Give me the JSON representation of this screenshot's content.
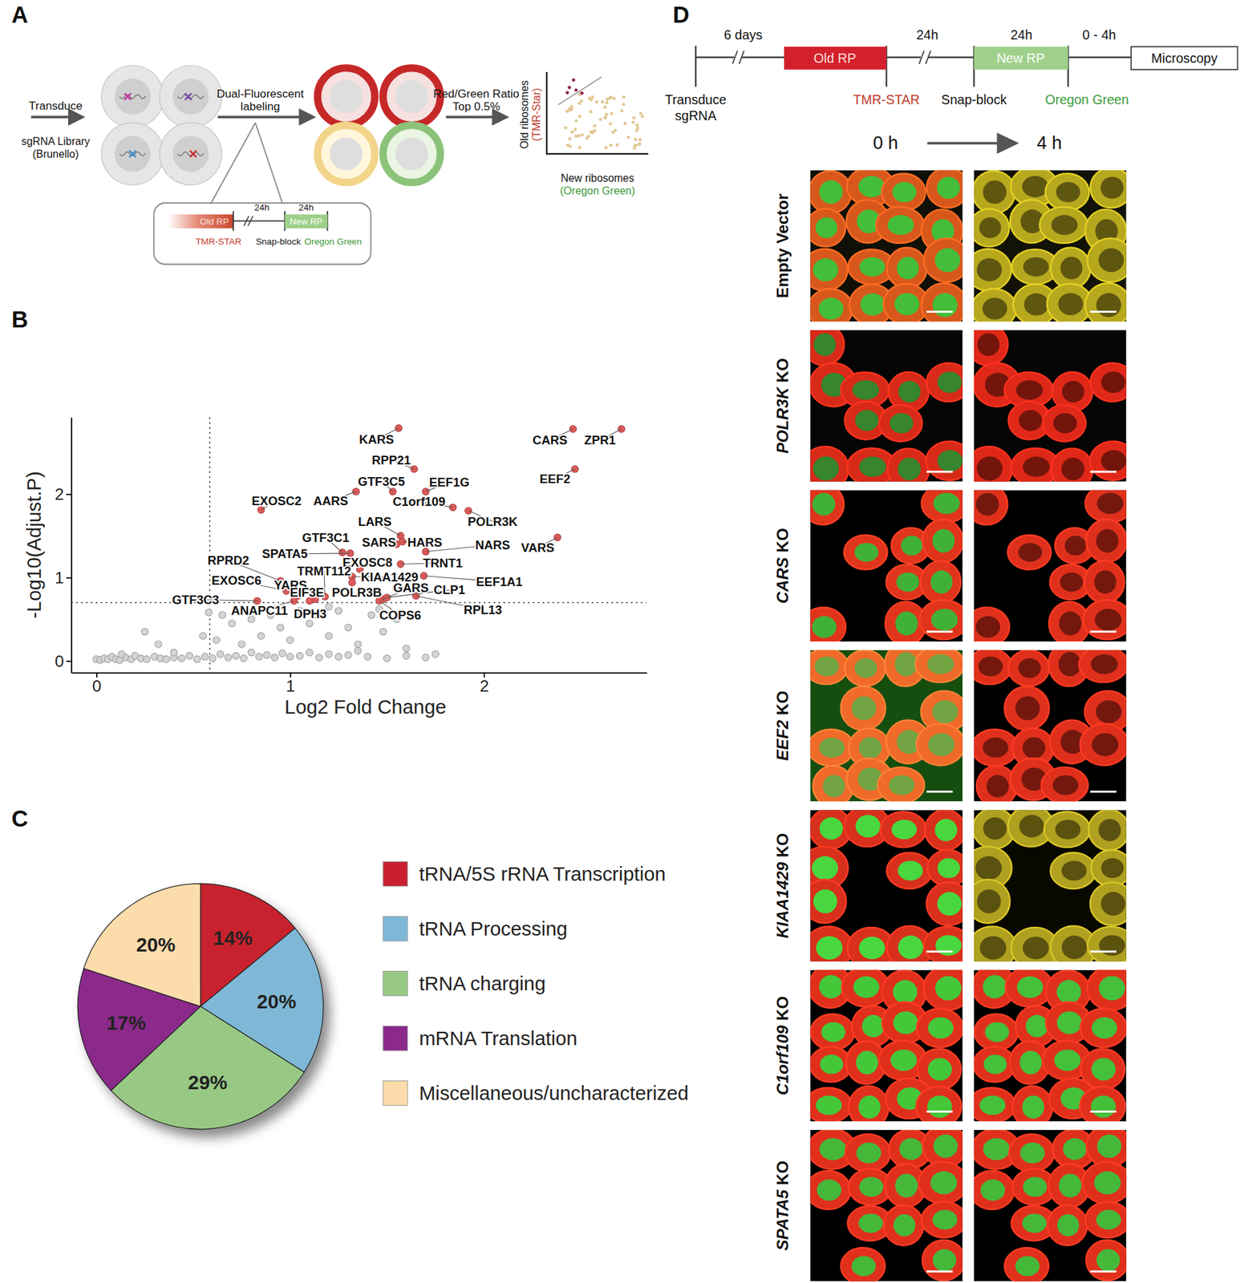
{
  "panels": {
    "A": {
      "label": "A",
      "step1": "Transduce",
      "library": [
        "sgRNA Library",
        "(Brunello)"
      ],
      "step2": [
        "Dual-Fluorescent",
        "labeling"
      ],
      "timeline": {
        "old": "Old RP",
        "gap": "24h",
        "new": "New RP",
        "gap2": "24h",
        "old_dye": "TMR-STAR",
        "block": "Snap-block",
        "new_dye": "Oregon Green"
      },
      "step3": [
        "Red/Green Ratio",
        "Top 0.5%"
      ],
      "y_label": [
        "Old ribosomes",
        "(TMR-Star)"
      ],
      "x_label": [
        "New ribosomes",
        "(Oregon Green)"
      ]
    },
    "B": {
      "label": "B"
    },
    "C": {
      "label": "C"
    },
    "D": {
      "label": "D",
      "durations": [
        "6 days",
        "24h",
        "24h",
        "0 - 4h"
      ],
      "old": "Old RP",
      "new": "New RP",
      "end": "Microscopy",
      "transduce": [
        "Transduce",
        "sgRNA"
      ],
      "old_dye": "TMR-STAR",
      "block": "Snap-block",
      "new_dye": "Oregon Green",
      "times": [
        "0 h",
        "4 h"
      ],
      "rows": [
        {
          "label": "Empty Vector",
          "images": [
            {
              "background": "#101008",
              "cytoplasm": "#d8581c",
              "nucleus": "#3cc43c"
            },
            {
              "background": "#121208",
              "cytoplasm": "#b8a81e",
              "nucleus": null
            }
          ]
        },
        {
          "gene": "POLR3K",
          "label": "KO",
          "images": [
            {
              "background": "#050505",
              "cytoplasm": "#d82a18",
              "nucleus": "#2e8a2e"
            },
            {
              "background": "#050505",
              "cytoplasm": "#e02818",
              "nucleus": null
            }
          ]
        },
        {
          "gene": "CARS",
          "label": "KO",
          "images": [
            {
              "background": "#000000",
              "cytoplasm": "#e0341c",
              "nucleus": "#38b838"
            },
            {
              "background": "#000000",
              "cytoplasm": "#e0301c",
              "nucleus": null
            }
          ]
        },
        {
          "gene": "EEF2",
          "label": "KO",
          "images": [
            {
              "background": "#164e10",
              "cytoplasm": "#f06a2a",
              "nucleus": "#6aa844"
            },
            {
              "background": "#000000",
              "cytoplasm": "#e0301c",
              "nucleus": null
            }
          ]
        },
        {
          "gene": "KIAA1429",
          "label": "KO",
          "images": [
            {
              "background": "#000000",
              "cytoplasm": "#d8301c",
              "nucleus": "#40e040"
            },
            {
              "background": "#080800",
              "cytoplasm": "#b0a020",
              "nucleus": null
            }
          ]
        },
        {
          "gene": "C1orf109",
          "label": "KO",
          "images": [
            {
              "background": "#000000",
              "cytoplasm": "#e0301c",
              "nucleus": "#3cd03c"
            },
            {
              "background": "#000000",
              "cytoplasm": "#e0301c",
              "nucleus": "#3cc83c"
            }
          ]
        },
        {
          "gene": "SPATA5",
          "label": "KO",
          "images": [
            {
              "background": "#000000",
              "cytoplasm": "#e0301c",
              "nucleus": "#3cc03c"
            },
            {
              "background": "#000000",
              "cytoplasm": "#e0301c",
              "nucleus": "#3cc03c"
            }
          ]
        }
      ]
    }
  },
  "chart_data": [
    {
      "type": "scatter",
      "x_label": "Log2 Fold Change",
      "y_label": "-Log10(Adjust.P)",
      "xlim": [
        -0.13,
        2.84
      ],
      "ylim": [
        -0.14,
        2.92
      ],
      "xticks": [
        0,
        1,
        2
      ],
      "yticks": [
        0,
        1,
        2
      ],
      "reference_lines": [
        {
          "axis": "x",
          "value": 0.585
        },
        {
          "axis": "y",
          "value": 0.699
        }
      ],
      "series": [
        {
          "color": "#d4d4d4",
          "x": [
            0.0,
            0.02,
            0.04,
            0.06,
            0.08,
            0.1,
            0.12,
            0.15,
            0.18,
            0.2,
            0.23,
            0.26,
            0.3,
            0.33,
            0.36,
            0.4,
            0.44,
            0.48,
            0.52,
            0.56,
            0.6,
            0.64,
            0.68,
            0.72,
            0.76,
            0.8,
            0.84,
            0.88,
            0.92,
            0.96,
            1.0,
            1.05,
            1.1,
            1.15,
            1.2,
            1.25,
            1.3,
            1.35,
            1.4,
            1.5,
            1.6,
            1.7,
            1.75,
            0.13,
            0.25,
            0.32,
            0.55,
            0.62,
            0.7,
            0.75,
            0.8,
            0.85,
            0.9,
            0.95,
            1.0,
            1.05,
            1.1,
            1.13,
            1.2,
            1.25,
            1.3,
            1.35,
            1.42,
            1.48,
            1.55,
            1.6,
            1.46,
            1.2,
            0.65,
            0.4,
            0.58
          ],
          "values": [
            0.02,
            0.01,
            0.03,
            0.02,
            0.05,
            0.02,
            0.01,
            0.04,
            0.02,
            0.06,
            0.03,
            0.02,
            0.05,
            0.03,
            0.02,
            0.04,
            0.03,
            0.06,
            0.02,
            0.05,
            0.03,
            0.08,
            0.04,
            0.06,
            0.03,
            0.1,
            0.05,
            0.07,
            0.04,
            0.09,
            0.05,
            0.06,
            0.1,
            0.04,
            0.08,
            0.05,
            0.07,
            0.12,
            0.05,
            0.03,
            0.06,
            0.04,
            0.08,
            0.08,
            0.35,
            0.2,
            0.3,
            0.25,
            0.45,
            0.2,
            0.5,
            0.3,
            0.55,
            0.4,
            0.25,
            0.6,
            0.45,
            0.55,
            0.3,
            0.6,
            0.4,
            0.2,
            0.55,
            0.35,
            0.5,
            0.15,
            0.62,
            0.65,
            0.55,
            0.1,
            0.58
          ]
        },
        {
          "color": "#e05a5a",
          "labels": [
            "KARS",
            "RPP21",
            "GTF3C5",
            "EEF1G",
            "AARS",
            "EXOSC2",
            "C1orf109",
            "POLR3K",
            "CARS",
            "ZPR1",
            "EEF2",
            "VARS",
            "LARS",
            "HARS",
            "NARS",
            "SARS",
            "GTF3C1",
            "SPATA5",
            "TRNT1",
            "EXOSC8",
            "TRMT112",
            "KIAA1429",
            "EEF1A1",
            "RPRD2",
            "EXOSC6",
            "YARS",
            "EIF3E",
            "POLR3B",
            "GARS",
            "CLP1",
            "RPL13",
            "COPS6",
            "DPH3",
            "ANAPC11",
            "GTF3C3"
          ],
          "x": [
            1.56,
            1.64,
            1.53,
            1.7,
            1.34,
            0.85,
            1.84,
            1.92,
            2.46,
            2.71,
            2.47,
            2.38,
            1.57,
            1.58,
            1.7,
            1.55,
            1.27,
            1.31,
            1.57,
            1.36,
            1.18,
            1.32,
            1.69,
            0.95,
            0.98,
            1.04,
            1.13,
            1.32,
            1.48,
            1.5,
            1.65,
            1.46,
            1.1,
            1.02,
            0.83
          ],
          "values": [
            2.79,
            2.3,
            2.03,
            2.03,
            2.03,
            1.81,
            1.84,
            1.8,
            2.78,
            2.78,
            2.3,
            1.48,
            1.5,
            1.43,
            1.31,
            1.4,
            1.3,
            1.29,
            1.16,
            1.1,
            0.77,
            1.01,
            1.02,
            0.96,
            0.84,
            0.78,
            0.74,
            0.94,
            0.74,
            0.76,
            0.78,
            0.72,
            0.72,
            0.72,
            0.72
          ]
        }
      ]
    },
    {
      "type": "pie",
      "categories": [
        "tRNA/5S rRNA Transcription",
        "tRNA Processing",
        "tRNA charging",
        "mRNA Translation",
        "Miscellaneous/uncharacterized"
      ],
      "values": [
        14,
        20,
        29,
        17,
        20
      ],
      "value_labels": [
        "14%",
        "20%",
        "29%",
        "17%",
        "20%"
      ],
      "colors": [
        "#c8202f",
        "#7fb8d6",
        "#98c984",
        "#8b2a8b",
        "#fbdcaa"
      ],
      "data_labels": true,
      "legend": "right"
    }
  ]
}
